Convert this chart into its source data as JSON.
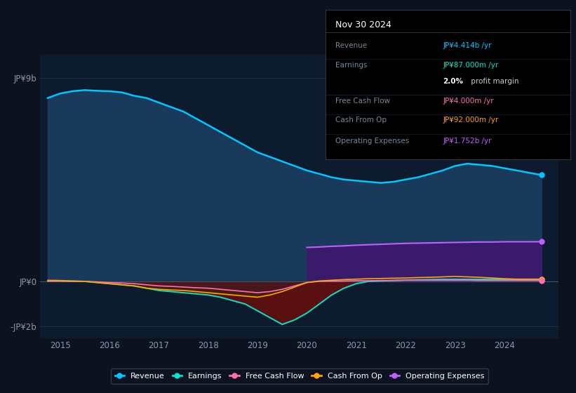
{
  "bg_color": "#0c1220",
  "plot_bg_color": "#0d1b2e",
  "years": [
    2014.75,
    2015.0,
    2015.25,
    2015.5,
    2015.75,
    2016.0,
    2016.25,
    2016.5,
    2016.75,
    2017.0,
    2017.25,
    2017.5,
    2017.75,
    2018.0,
    2018.25,
    2018.5,
    2018.75,
    2019.0,
    2019.25,
    2019.5,
    2019.75,
    2020.0,
    2020.25,
    2020.5,
    2020.75,
    2021.0,
    2021.25,
    2021.5,
    2021.75,
    2022.0,
    2022.25,
    2022.5,
    2022.75,
    2023.0,
    2023.25,
    2023.5,
    2023.75,
    2024.0,
    2024.25,
    2024.5,
    2024.75
  ],
  "revenue": [
    8.1,
    8.3,
    8.4,
    8.45,
    8.42,
    8.4,
    8.35,
    8.2,
    8.1,
    7.9,
    7.7,
    7.5,
    7.2,
    6.9,
    6.6,
    6.3,
    6.0,
    5.7,
    5.5,
    5.3,
    5.1,
    4.9,
    4.75,
    4.6,
    4.5,
    4.45,
    4.4,
    4.35,
    4.4,
    4.5,
    4.6,
    4.75,
    4.9,
    5.1,
    5.2,
    5.15,
    5.1,
    5.0,
    4.9,
    4.8,
    4.7
  ],
  "earnings": [
    0.02,
    0.02,
    0.01,
    0.0,
    -0.05,
    -0.1,
    -0.15,
    -0.2,
    -0.3,
    -0.4,
    -0.45,
    -0.5,
    -0.55,
    -0.6,
    -0.7,
    -0.85,
    -1.0,
    -1.3,
    -1.6,
    -1.9,
    -1.7,
    -1.4,
    -1.0,
    -0.6,
    -0.3,
    -0.1,
    0.0,
    0.02,
    0.04,
    0.06,
    0.07,
    0.08,
    0.09,
    0.09,
    0.09,
    0.09,
    0.09,
    0.09,
    0.09,
    0.09,
    0.09
  ],
  "free_cash_flow": [
    0.01,
    0.01,
    0.0,
    0.0,
    -0.02,
    -0.05,
    -0.07,
    -0.1,
    -0.15,
    -0.2,
    -0.22,
    -0.25,
    -0.28,
    -0.3,
    -0.35,
    -0.4,
    -0.45,
    -0.5,
    -0.45,
    -0.35,
    -0.2,
    -0.05,
    0.0,
    0.01,
    0.02,
    0.03,
    0.03,
    0.04,
    0.04,
    0.05,
    0.05,
    0.05,
    0.05,
    0.05,
    0.05,
    0.04,
    0.04,
    0.04,
    0.04,
    0.04,
    0.04
  ],
  "cash_from_op": [
    0.05,
    0.04,
    0.02,
    0.0,
    -0.05,
    -0.1,
    -0.15,
    -0.2,
    -0.3,
    -0.35,
    -0.38,
    -0.4,
    -0.45,
    -0.5,
    -0.55,
    -0.6,
    -0.65,
    -0.7,
    -0.6,
    -0.45,
    -0.25,
    -0.05,
    0.02,
    0.05,
    0.08,
    0.1,
    0.12,
    0.13,
    0.14,
    0.15,
    0.17,
    0.18,
    0.2,
    0.22,
    0.2,
    0.18,
    0.15,
    0.12,
    0.1,
    0.1,
    0.1
  ],
  "op_expenses": [
    0.0,
    0.0,
    0.0,
    0.0,
    0.0,
    0.0,
    0.0,
    0.0,
    0.0,
    0.0,
    0.0,
    0.0,
    0.0,
    0.0,
    0.0,
    0.0,
    0.0,
    0.0,
    0.0,
    0.0,
    0.0,
    1.5,
    1.52,
    1.55,
    1.57,
    1.6,
    1.62,
    1.64,
    1.66,
    1.68,
    1.69,
    1.7,
    1.71,
    1.72,
    1.73,
    1.74,
    1.74,
    1.75,
    1.75,
    1.75,
    1.752
  ],
  "xlim": [
    2014.6,
    2025.1
  ],
  "ylim": [
    -2.5,
    10.0
  ],
  "ytick_vals": [
    -2,
    0,
    9
  ],
  "ytick_labels": [
    "-JP¥2b",
    "JP¥0",
    "JP¥9b"
  ],
  "xtick_vals": [
    2015,
    2016,
    2017,
    2018,
    2019,
    2020,
    2021,
    2022,
    2023,
    2024
  ],
  "revenue_color": "#00c8ff",
  "earnings_color": "#00e5cc",
  "fcf_color": "#ff6eb4",
  "cashop_color": "#ffa500",
  "opex_color": "#bf5fff",
  "revenue_fill": "#1a3a5c",
  "opex_fill": "#3a1a6a",
  "earnings_neg_fill": "#5a1010",
  "earnings_pos_fill": "#0a3a3a",
  "legend_items": [
    "Revenue",
    "Earnings",
    "Free Cash Flow",
    "Cash From Op",
    "Operating Expenses"
  ]
}
